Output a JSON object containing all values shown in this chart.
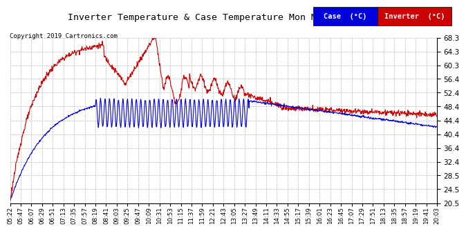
{
  "title": "Inverter Temperature & Case Temperature Mon May 27 20:08",
  "copyright": "Copyright 2019 Cartronics.com",
  "background_color": "#ffffff",
  "plot_bg_color": "#ffffff",
  "grid_color": "#bbbbbb",
  "y_ticks": [
    20.5,
    24.5,
    28.5,
    32.4,
    36.4,
    40.4,
    44.4,
    48.4,
    52.4,
    56.4,
    60.3,
    64.3,
    68.3
  ],
  "ylim": [
    20.5,
    68.3
  ],
  "x_labels": [
    "05:22",
    "05:47",
    "06:07",
    "06:29",
    "06:51",
    "07:13",
    "07:35",
    "07:57",
    "08:19",
    "08:41",
    "09:03",
    "09:25",
    "09:47",
    "10:09",
    "10:31",
    "10:53",
    "11:15",
    "11:37",
    "11:59",
    "12:21",
    "12:43",
    "13:05",
    "13:27",
    "13:49",
    "14:11",
    "14:33",
    "14:55",
    "15:17",
    "15:39",
    "16:01",
    "16:23",
    "16:45",
    "17:07",
    "17:29",
    "17:51",
    "18:13",
    "18:35",
    "18:57",
    "19:19",
    "19:41",
    "20:03"
  ],
  "legend_case_color": "#0000dd",
  "legend_inverter_color": "#cc0000",
  "legend_case_label": "Case  (°C)",
  "legend_inverter_label": "Inverter  (°C)"
}
